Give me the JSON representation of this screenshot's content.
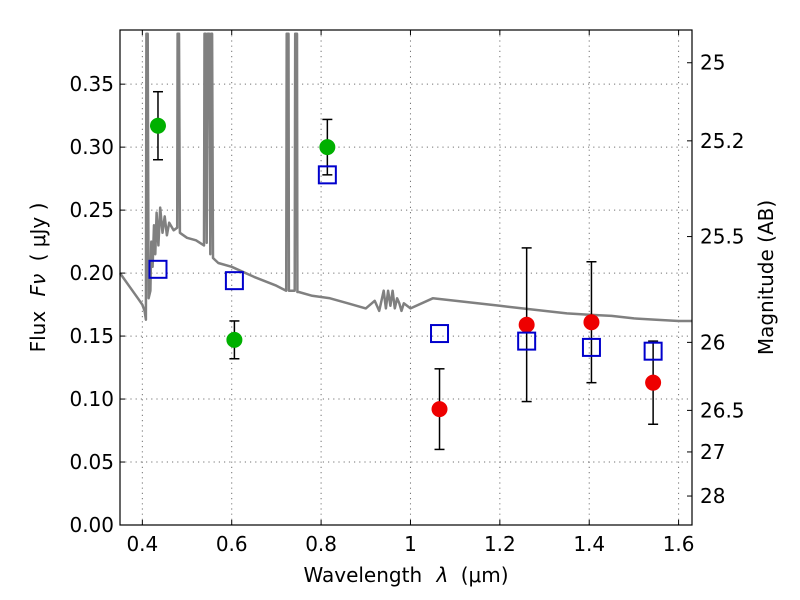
{
  "chart_data": {
    "type": "scatter",
    "xlabel": "Wavelength",
    "xlabel_symbol": "λ",
    "xlabel_unit": "(μm)",
    "ylabel": "Flux",
    "ylabel_symbol": "Fν",
    "ylabel_unit": "( μJy )",
    "y2label": "Magnitude (AB)",
    "xlim": [
      0.35,
      1.63
    ],
    "ylim": [
      0,
      0.393
    ],
    "grid": true,
    "x_ticks": [
      {
        "value": 0.4,
        "label": "0.4"
      },
      {
        "value": 0.6,
        "label": "0.6"
      },
      {
        "value": 0.8,
        "label": "0.8"
      },
      {
        "value": 1.0,
        "label": "1"
      },
      {
        "value": 1.2,
        "label": "1.2"
      },
      {
        "value": 1.4,
        "label": "1.4"
      },
      {
        "value": 1.6,
        "label": "1.6"
      }
    ],
    "y_ticks": [
      {
        "value": 0.0,
        "label": "0.00"
      },
      {
        "value": 0.05,
        "label": "0.05"
      },
      {
        "value": 0.1,
        "label": "0.10"
      },
      {
        "value": 0.15,
        "label": "0.15"
      },
      {
        "value": 0.2,
        "label": "0.20"
      },
      {
        "value": 0.25,
        "label": "0.25"
      },
      {
        "value": 0.3,
        "label": "0.30"
      },
      {
        "value": 0.35,
        "label": "0.35"
      }
    ],
    "y2_ticks": [
      {
        "flux": 0.367,
        "label": "25"
      },
      {
        "flux": 0.305,
        "label": "25.2"
      },
      {
        "flux": 0.229,
        "label": "25.5"
      },
      {
        "flux": 0.145,
        "label": "26"
      },
      {
        "flux": 0.091,
        "label": "26.5"
      },
      {
        "flux": 0.058,
        "label": "27"
      },
      {
        "flux": 0.023,
        "label": "28"
      }
    ],
    "colors": {
      "green": "#00b000",
      "red": "#ee0000",
      "model": "#808080",
      "square": "#0000cc",
      "errorbar": "#000000"
    },
    "series": [
      {
        "marker": "circle",
        "color": "green",
        "points": [
          {
            "x": 0.435,
            "y": 0.317,
            "err": 0.027
          },
          {
            "x": 0.606,
            "y": 0.147,
            "err": 0.015
          },
          {
            "x": 0.814,
            "y": 0.3,
            "err": 0.022
          }
        ]
      },
      {
        "marker": "circle",
        "color": "red",
        "points": [
          {
            "x": 1.065,
            "y": 0.092,
            "err": 0.032
          },
          {
            "x": 1.26,
            "y": 0.159,
            "err": 0.061
          },
          {
            "x": 1.405,
            "y": 0.161,
            "err": 0.048
          },
          {
            "x": 1.543,
            "y": 0.113,
            "err": 0.033
          }
        ]
      },
      {
        "marker": "square",
        "color": "square",
        "points": [
          {
            "x": 0.435,
            "y": 0.203
          },
          {
            "x": 0.606,
            "y": 0.194
          },
          {
            "x": 0.814,
            "y": 0.278
          },
          {
            "x": 1.065,
            "y": 0.152
          },
          {
            "x": 1.26,
            "y": 0.146
          },
          {
            "x": 1.405,
            "y": 0.141
          },
          {
            "x": 1.543,
            "y": 0.138
          }
        ]
      }
    ],
    "model_spectrum": [
      [
        0.35,
        0.2
      ],
      [
        0.37,
        0.19
      ],
      [
        0.39,
        0.18
      ],
      [
        0.4,
        0.175
      ],
      [
        0.405,
        0.17
      ],
      [
        0.408,
        0.163
      ],
      [
        0.409,
        0.39
      ],
      [
        0.412,
        0.39
      ],
      [
        0.414,
        0.18
      ],
      [
        0.418,
        0.186
      ],
      [
        0.42,
        0.225
      ],
      [
        0.423,
        0.205
      ],
      [
        0.426,
        0.238
      ],
      [
        0.429,
        0.215
      ],
      [
        0.432,
        0.248
      ],
      [
        0.436,
        0.222
      ],
      [
        0.44,
        0.252
      ],
      [
        0.445,
        0.232
      ],
      [
        0.45,
        0.245
      ],
      [
        0.455,
        0.23
      ],
      [
        0.46,
        0.24
      ],
      [
        0.47,
        0.234
      ],
      [
        0.478,
        0.236
      ],
      [
        0.479,
        0.39
      ],
      [
        0.482,
        0.39
      ],
      [
        0.484,
        0.232
      ],
      [
        0.5,
        0.228
      ],
      [
        0.52,
        0.226
      ],
      [
        0.538,
        0.222
      ],
      [
        0.539,
        0.39
      ],
      [
        0.542,
        0.39
      ],
      [
        0.544,
        0.224
      ],
      [
        0.546,
        0.39
      ],
      [
        0.55,
        0.39
      ],
      [
        0.552,
        0.215
      ],
      [
        0.554,
        0.39
      ],
      [
        0.556,
        0.39
      ],
      [
        0.558,
        0.212
      ],
      [
        0.57,
        0.208
      ],
      [
        0.6,
        0.205
      ],
      [
        0.65,
        0.197
      ],
      [
        0.7,
        0.19
      ],
      [
        0.722,
        0.186
      ],
      [
        0.723,
        0.39
      ],
      [
        0.727,
        0.39
      ],
      [
        0.728,
        0.186
      ],
      [
        0.741,
        0.186
      ],
      [
        0.742,
        0.39
      ],
      [
        0.746,
        0.39
      ],
      [
        0.747,
        0.185
      ],
      [
        0.75,
        0.185
      ],
      [
        0.78,
        0.182
      ],
      [
        0.82,
        0.18
      ],
      [
        0.86,
        0.176
      ],
      [
        0.9,
        0.172
      ],
      [
        0.92,
        0.178
      ],
      [
        0.93,
        0.17
      ],
      [
        0.94,
        0.186
      ],
      [
        0.945,
        0.172
      ],
      [
        0.95,
        0.186
      ],
      [
        0.955,
        0.174
      ],
      [
        0.96,
        0.186
      ],
      [
        0.965,
        0.172
      ],
      [
        0.97,
        0.18
      ],
      [
        0.975,
        0.176
      ],
      [
        0.98,
        0.17
      ],
      [
        0.985,
        0.176
      ],
      [
        1.0,
        0.172
      ],
      [
        1.05,
        0.18
      ],
      [
        1.1,
        0.178
      ],
      [
        1.15,
        0.176
      ],
      [
        1.2,
        0.174
      ],
      [
        1.25,
        0.172
      ],
      [
        1.3,
        0.17
      ],
      [
        1.35,
        0.168
      ],
      [
        1.4,
        0.167
      ],
      [
        1.45,
        0.166
      ],
      [
        1.5,
        0.164
      ],
      [
        1.55,
        0.163
      ],
      [
        1.6,
        0.162
      ],
      [
        1.63,
        0.162
      ]
    ]
  }
}
